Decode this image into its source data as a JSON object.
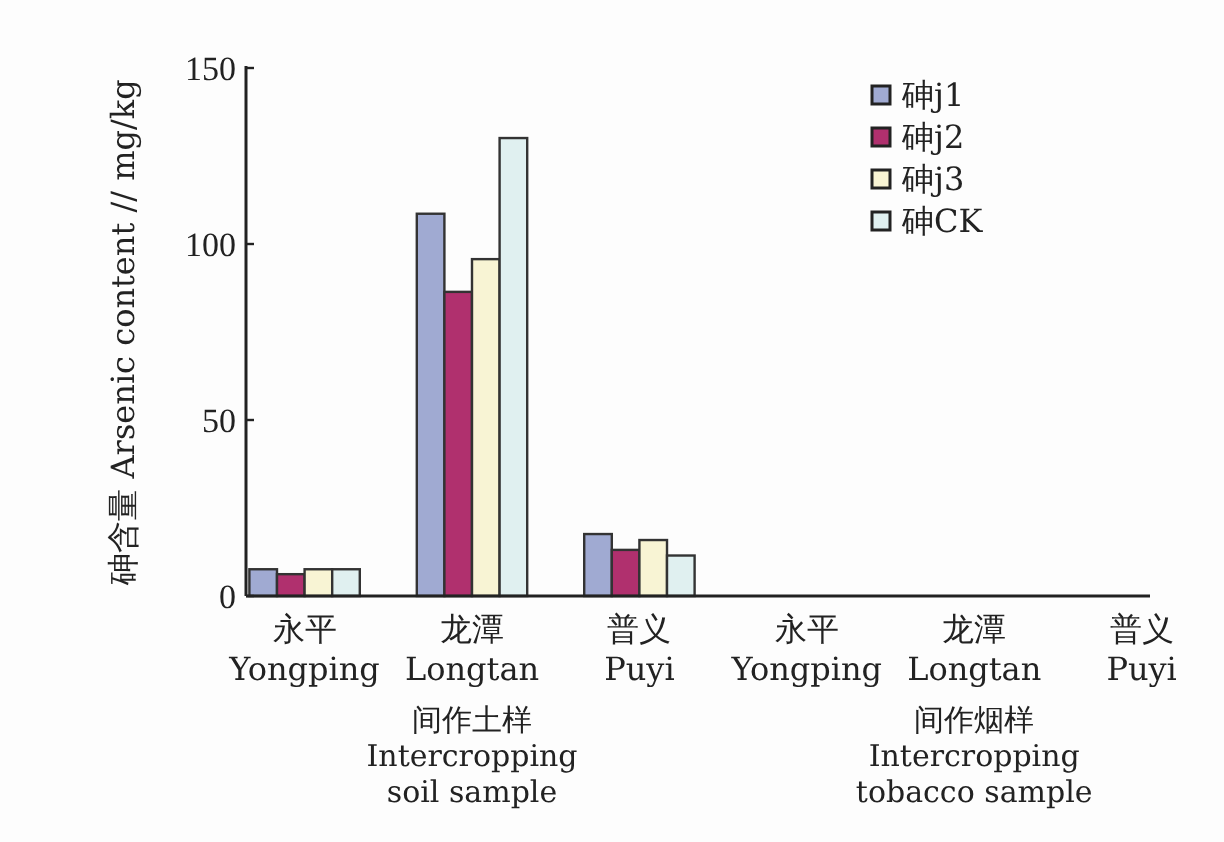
{
  "chart_data": {
    "type": "bar",
    "ylabel": "砷含量 Arsenic content // mg/kg",
    "categories": [
      "永平 Yongping",
      "龙潭 Longtan",
      "普义 Puyi",
      "永平 Yongping",
      "龙潭 Longtan",
      "普义 Puyi"
    ],
    "series": [
      {
        "name": "砷j1",
        "color": "#a0aad2",
        "values": [
          7.6,
          108.6,
          17.6,
          null,
          null,
          null
        ]
      },
      {
        "name": "砷j2",
        "color": "#b0306e",
        "values": [
          6.2,
          86.4,
          13.1,
          null,
          null,
          null
        ]
      },
      {
        "name": "砷j3",
        "color": "#f8f4d4",
        "values": [
          7.6,
          95.7,
          15.9,
          null,
          null,
          null
        ]
      },
      {
        "name": "砷CK",
        "color": "#e0f0f0",
        "values": [
          7.6,
          130.1,
          11.5,
          null,
          null,
          null
        ]
      }
    ],
    "ylim": [
      0,
      150
    ],
    "yticks": [
      0,
      50,
      100,
      150
    ],
    "legend": "top right",
    "annotations": [
      "间作土样 Intercropping soil sample",
      "间作烟样 Intercropping tobacco sample"
    ]
  }
}
